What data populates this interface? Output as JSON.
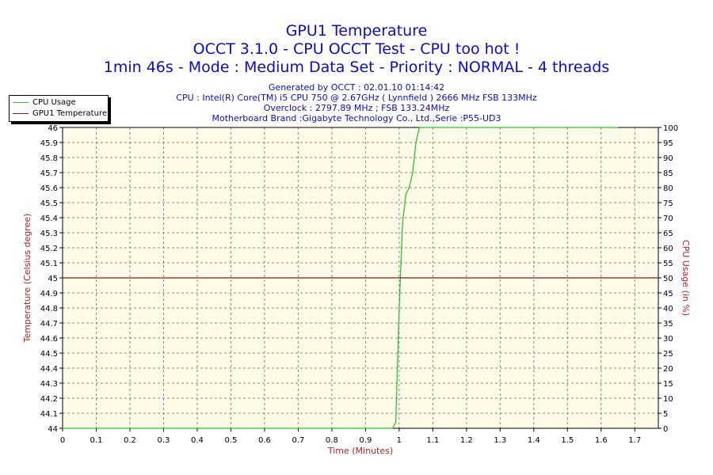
{
  "header": {
    "title_line1": "GPU1 Temperature",
    "title_line2": "OCCT 3.1.0 - CPU OCCT Test - CPU too hot !",
    "title_line3": "1min 46s - Mode : Medium Data Set - Priority : NORMAL - 4 threads",
    "generated": "Generated by OCCT : 02.01.10 01:14:42",
    "cpu": "CPU : Intel(R) Core(TM) i5 CPU 750 @ 2.67GHz ( Lynnfield ) 2666 MHz FSB 133MHz",
    "overclock": "Overclock : 2797.89 MHz ; FSB 133.24MHz",
    "motherboard": "Motherboard Brand :Gigabyte Technology Co., Ltd.,Serie :P55-UD3"
  },
  "colors": {
    "cpu_usage": "#22cc22",
    "gpu_temp": "#8b1a1a",
    "plot_bg": "#fffbe8",
    "title": "#0a0ad0",
    "axis_label": "#b22222"
  },
  "chart_data": {
    "type": "line",
    "title": "GPU1 Temperature",
    "xlabel": "Time (Minutes)",
    "ylabel": "Temperature (Celsius degree)",
    "y2label": "CPU Usage (in %)",
    "xlim": [
      0,
      1.77
    ],
    "ylim": [
      44,
      46
    ],
    "y2lim": [
      0,
      100
    ],
    "xticks": [
      "0",
      "0.1",
      "0.2",
      "0.3",
      "0.4",
      "0.5",
      "0.6",
      "0.7",
      "0.8",
      "0.9",
      "1",
      "1.1",
      "1.2",
      "1.3",
      "1.4",
      "1.5",
      "1.6",
      "1.7"
    ],
    "yticks": [
      "44",
      "44.1",
      "44.2",
      "44.3",
      "44.4",
      "44.5",
      "44.6",
      "44.7",
      "44.8",
      "44.9",
      "45",
      "45.1",
      "45.2",
      "45.3",
      "45.4",
      "45.5",
      "45.6",
      "45.7",
      "45.8",
      "45.9",
      "46"
    ],
    "y2ticks": [
      "0",
      "5",
      "10",
      "15",
      "20",
      "25",
      "30",
      "35",
      "40",
      "45",
      "50",
      "55",
      "60",
      "65",
      "70",
      "75",
      "80",
      "85",
      "90",
      "95",
      "100"
    ],
    "grid": true,
    "legend_position": "top-left",
    "series": [
      {
        "name": "CPU Usage",
        "axis": "right",
        "x": [
          0,
          0.98,
          0.99,
          1.0,
          1.01,
          1.02,
          1.03,
          1.04,
          1.05,
          1.06,
          1.1,
          1.15,
          1.2,
          1.25,
          1.3,
          1.4,
          1.5,
          1.6,
          1.65
        ],
        "y": [
          0,
          0,
          2,
          40,
          68,
          78,
          80,
          85,
          95,
          100,
          100,
          100,
          100,
          100,
          100,
          100,
          100,
          100,
          100
        ]
      },
      {
        "name": "GPU1 Temperature",
        "axis": "left",
        "x": [
          0,
          0.1,
          0.2,
          0.3,
          0.4,
          0.5,
          0.6,
          0.7,
          0.8,
          0.9,
          1.0,
          1.1,
          1.2,
          1.3,
          1.4,
          1.5,
          1.6,
          1.7,
          1.77
        ],
        "y": [
          45,
          45,
          45,
          45,
          45,
          45,
          45,
          45,
          45,
          45,
          45,
          45,
          45,
          45,
          45,
          45,
          45,
          45,
          45
        ]
      }
    ]
  }
}
